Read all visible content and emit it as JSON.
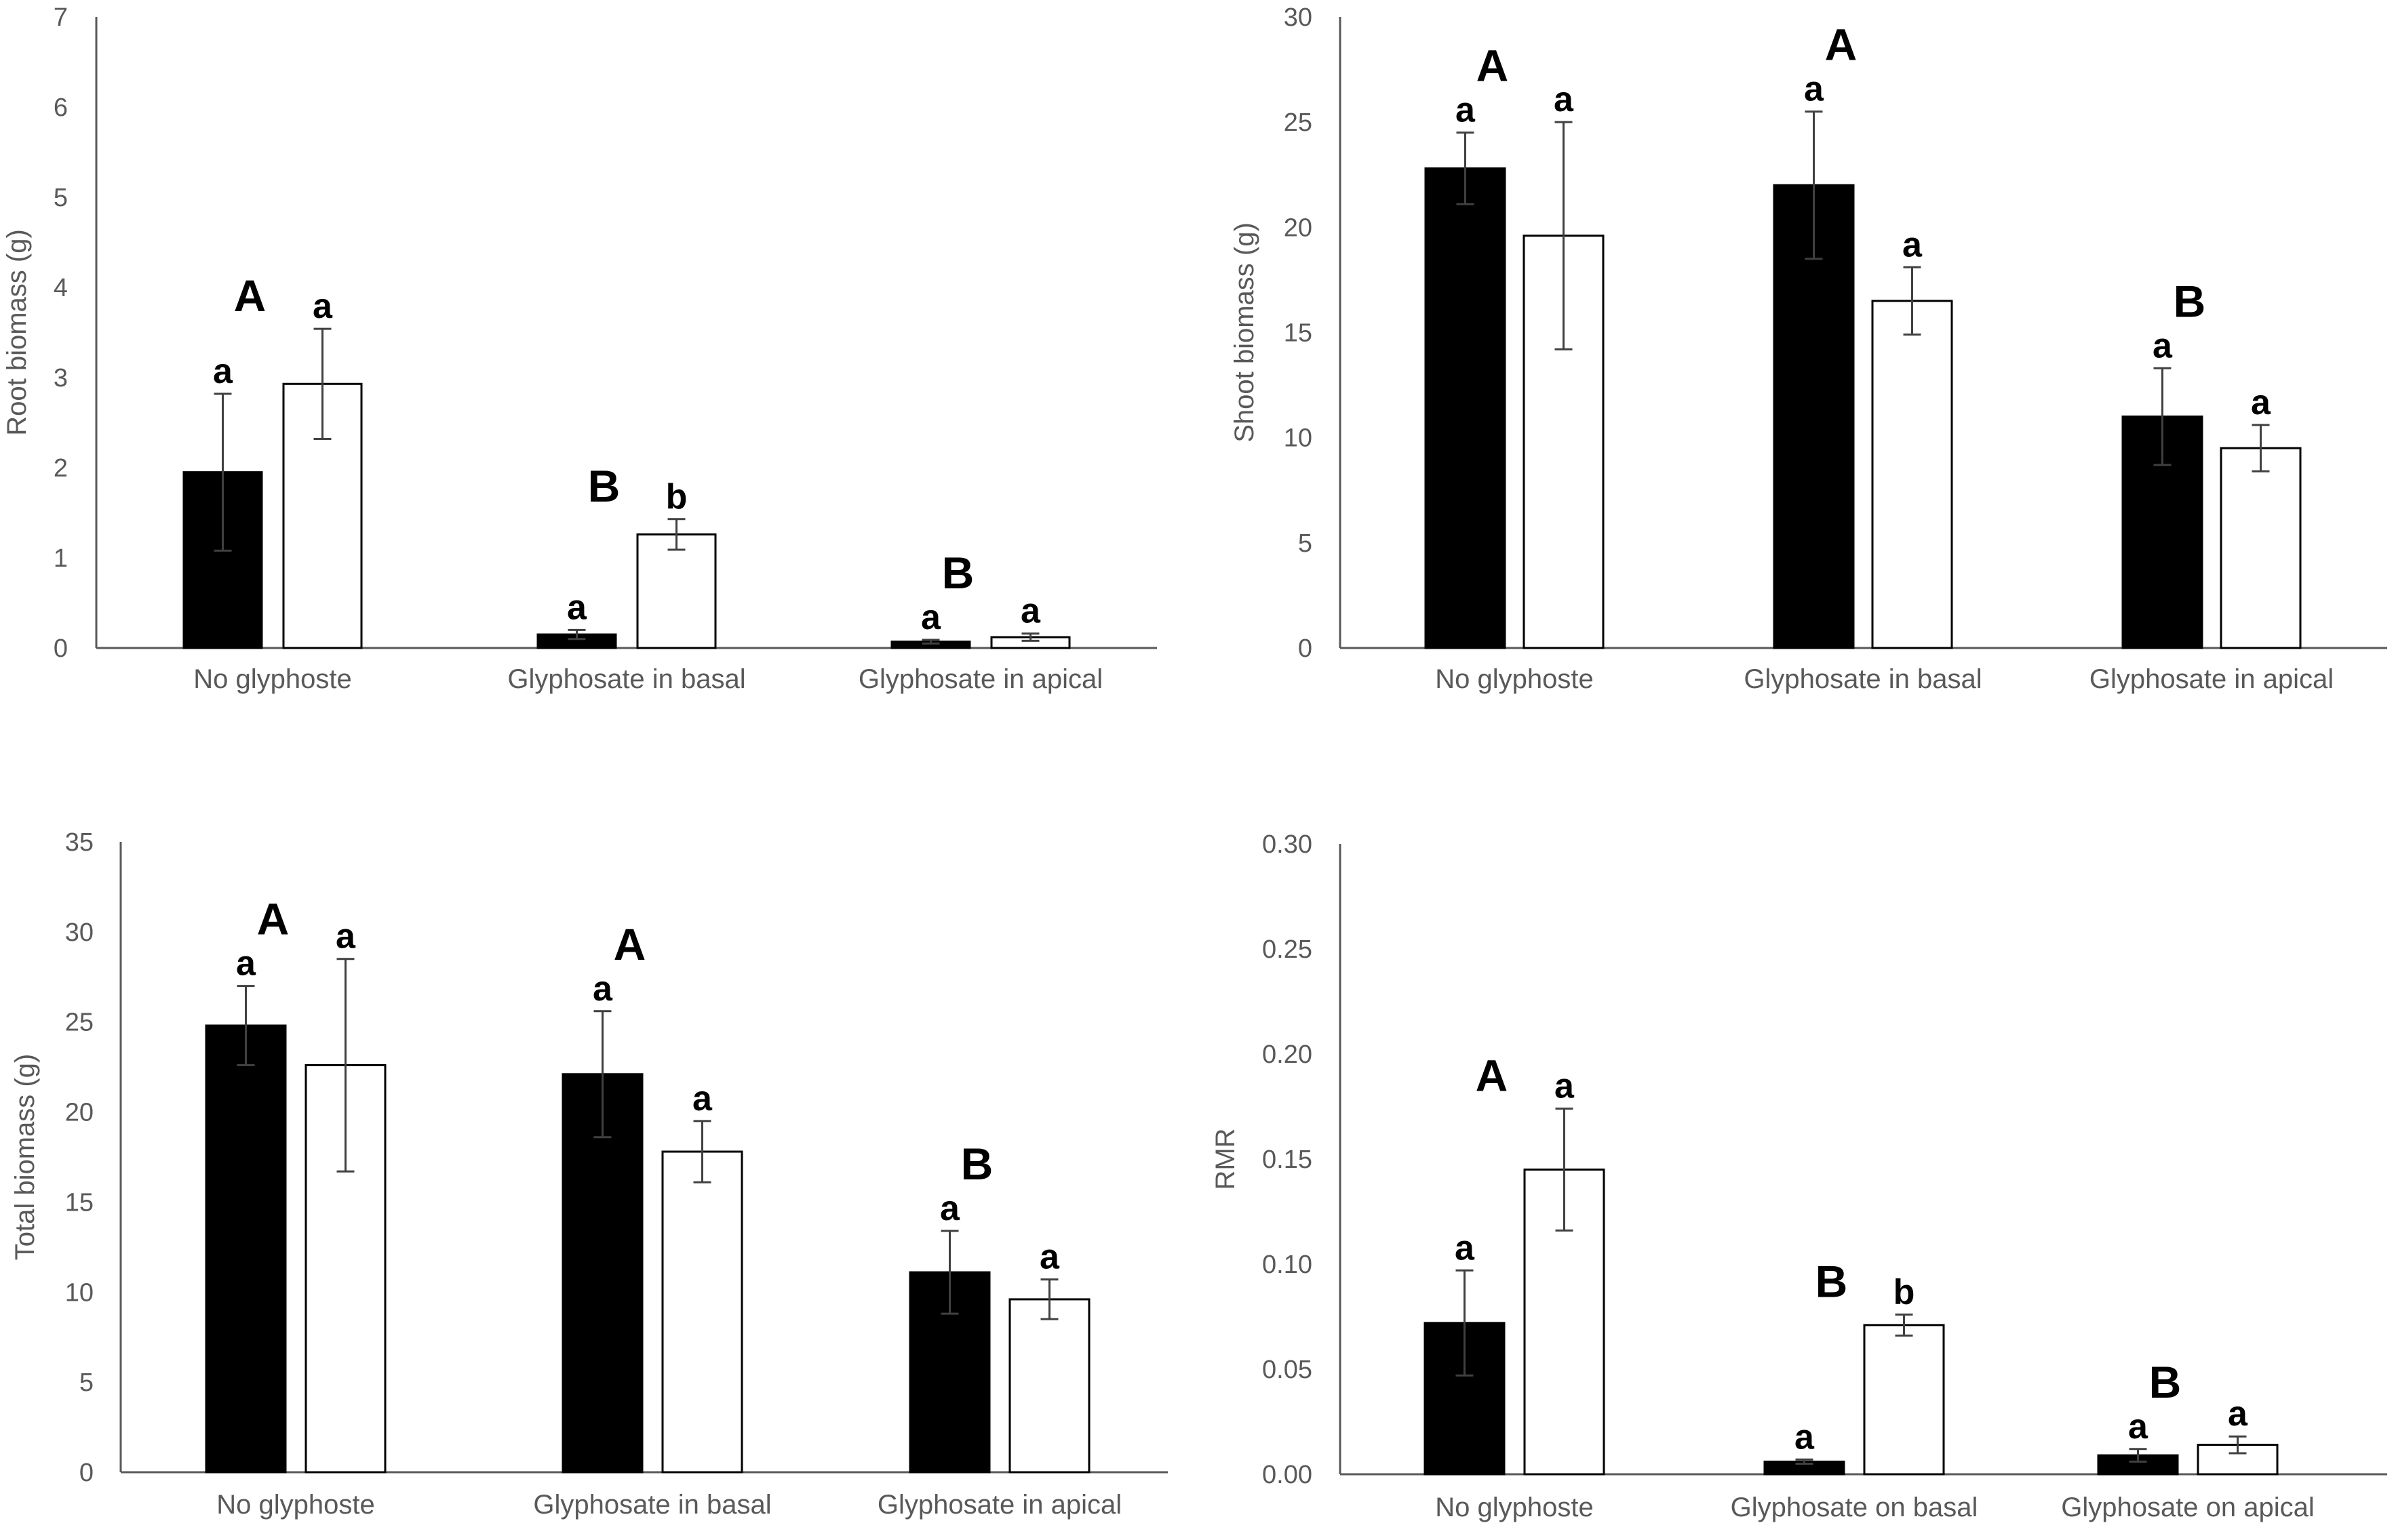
{
  "colors": {
    "series_filled": "#000000",
    "series_open": "#ffffff",
    "bar_edge": "#000000",
    "axis": "#595959",
    "text": "#595959"
  },
  "chart_data": [
    {
      "id": "root",
      "type": "bar",
      "ylabel": "Root biomass (g)",
      "ylim": [
        0,
        7
      ],
      "yticks": [
        "0",
        "1",
        "2",
        "3",
        "4",
        "5",
        "6",
        "7"
      ],
      "categories": [
        "No glyphoste",
        "Glyphosate in basal",
        "Glyphosate in apical"
      ],
      "series": [
        {
          "name": "filled",
          "values": [
            1.95,
            0.15,
            0.07
          ],
          "errors": [
            0.87,
            0.05,
            0.02
          ],
          "letters": [
            "a",
            "a",
            "a"
          ]
        },
        {
          "name": "open",
          "values": [
            2.93,
            1.26,
            0.12
          ],
          "errors": [
            0.61,
            0.17,
            0.04
          ],
          "letters": [
            "a",
            "b",
            "a"
          ]
        }
      ],
      "group_letters": [
        "A",
        "B",
        "B"
      ]
    },
    {
      "id": "shoot",
      "type": "bar",
      "ylabel": "Shoot biomass (g)",
      "ylim": [
        0,
        30
      ],
      "yticks": [
        "0",
        "5",
        "10",
        "15",
        "20",
        "25",
        "30"
      ],
      "categories": [
        "No glyphoste",
        "Glyphosate in basal",
        "Glyphosate in apical"
      ],
      "series": [
        {
          "name": "filled",
          "values": [
            22.8,
            22.0,
            11.0
          ],
          "errors": [
            1.7,
            3.5,
            2.3
          ],
          "letters": [
            "a",
            "a",
            "a"
          ]
        },
        {
          "name": "open",
          "values": [
            19.6,
            16.5,
            9.5
          ],
          "errors": [
            5.4,
            1.6,
            1.1
          ],
          "letters": [
            "a",
            "a",
            "a"
          ]
        }
      ],
      "group_letters": [
        "A",
        "A",
        "B"
      ]
    },
    {
      "id": "total",
      "type": "bar",
      "ylabel": "Total biomass (g)",
      "ylim": [
        0,
        35
      ],
      "yticks": [
        "0",
        "5",
        "10",
        "15",
        "20",
        "25",
        "30",
        "35"
      ],
      "categories": [
        "No glyphoste",
        "Glyphosate in basal",
        "Glyphosate in apical"
      ],
      "series": [
        {
          "name": "filled",
          "values": [
            24.8,
            22.1,
            11.1
          ],
          "errors": [
            2.2,
            3.5,
            2.3
          ],
          "letters": [
            "a",
            "a",
            "a"
          ]
        },
        {
          "name": "open",
          "values": [
            22.6,
            17.8,
            9.6
          ],
          "errors": [
            5.9,
            1.7,
            1.1
          ],
          "letters": [
            "a",
            "a",
            "a"
          ]
        }
      ],
      "group_letters": [
        "A",
        "A",
        "B"
      ]
    },
    {
      "id": "rmr",
      "type": "bar",
      "ylabel": "RMR",
      "ylim": [
        0,
        0.3
      ],
      "yticks": [
        "0.00",
        "0.05",
        "0.10",
        "0.15",
        "0.20",
        "0.25",
        "0.30"
      ],
      "categories": [
        "No glyphoste",
        "Glyphosate on basal",
        "Glyphosate on apical"
      ],
      "series": [
        {
          "name": "filled",
          "values": [
            0.072,
            0.006,
            0.009
          ],
          "errors": [
            0.025,
            0.001,
            0.003
          ],
          "letters": [
            "a",
            "a",
            "a"
          ]
        },
        {
          "name": "open",
          "values": [
            0.145,
            0.071,
            0.014
          ],
          "errors": [
            0.029,
            0.005,
            0.004
          ],
          "letters": [
            "a",
            "b",
            "a"
          ]
        }
      ],
      "group_letters": [
        "A",
        "B",
        "B"
      ]
    }
  ]
}
